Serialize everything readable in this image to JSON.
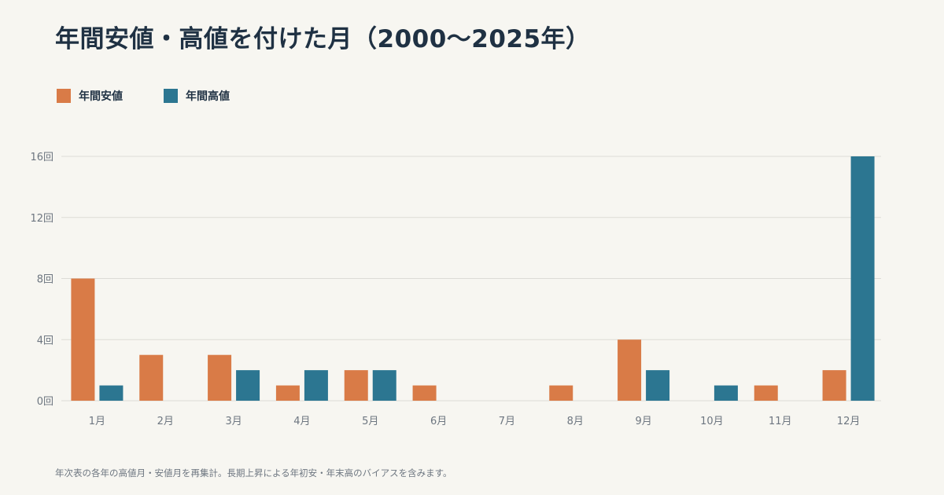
{
  "title": "年間安値・高値を付けた月（2000〜2025年）",
  "note": "年次表の各年の高値月・安値月を再集計。長期上昇による年初安・年末高のバイアスを含みます。",
  "colors": {
    "background": "#f7f6f1",
    "low": "#d97b47",
    "high": "#2c7691",
    "grid": "#dddcd6",
    "text": "#1f3143"
  },
  "chart_data": {
    "type": "bar",
    "categories": [
      "1月",
      "2月",
      "3月",
      "4月",
      "5月",
      "6月",
      "7月",
      "8月",
      "9月",
      "10月",
      "11月",
      "12月"
    ],
    "series": [
      {
        "name": "年間安値",
        "color": "#d97b47",
        "values": [
          8,
          3,
          3,
          1,
          2,
          1,
          0,
          1,
          4,
          0,
          1,
          2
        ]
      },
      {
        "name": "年間高値",
        "color": "#2c7691",
        "values": [
          1,
          0,
          2,
          2,
          2,
          0,
          0,
          0,
          2,
          1,
          0,
          16
        ]
      }
    ],
    "yticks": [
      0,
      4,
      8,
      12,
      16
    ],
    "ytick_labels": [
      "0回",
      "4回",
      "8回",
      "12回",
      "16回"
    ],
    "ylim": [
      0,
      16
    ],
    "grid": true,
    "legend_position": "top-left"
  }
}
